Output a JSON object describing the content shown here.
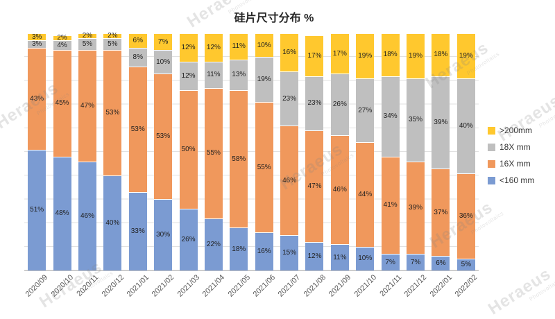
{
  "title": "硅片尺寸分布 %",
  "watermark": {
    "text": "Heraeus",
    "subtext": "Photovoltaics"
  },
  "legend": [
    {
      "label": ">200mm",
      "color": "#FFC82E"
    },
    {
      "label": "18X mm",
      "color": "#BFBFBF"
    },
    {
      "label": "16X mm",
      "color": "#F0985C"
    },
    {
      "label": "<160 mm",
      "color": "#7B9BD2"
    }
  ],
  "chart_data": {
    "type": "bar",
    "stacked": true,
    "title": "硅片尺寸分布 %",
    "xlabel": "",
    "ylabel": "",
    "ylim": [
      0,
      100
    ],
    "grid": true,
    "legend_position": "right",
    "value_suffix": "%",
    "categories": [
      "2020/09",
      "2020/10",
      "2020/11",
      "2020/12",
      "2021/01",
      "2021/02",
      "2021/03",
      "2021/04",
      "2021/05",
      "2021/06",
      "2021/07",
      "2021/08",
      "2021/09",
      "2021/10",
      "2021/11",
      "2021/12",
      "2022/01",
      "2022/02"
    ],
    "series": [
      {
        "name": "<160 mm",
        "color": "#7B9BD2",
        "values": [
          51,
          48,
          46,
          40,
          33,
          30,
          26,
          22,
          18,
          16,
          15,
          12,
          11,
          10,
          7,
          7,
          6,
          5
        ]
      },
      {
        "name": "16X mm",
        "color": "#F0985C",
        "values": [
          43,
          45,
          47,
          53,
          53,
          53,
          50,
          55,
          58,
          55,
          46,
          47,
          46,
          44,
          41,
          39,
          37,
          36
        ]
      },
      {
        "name": "18X mm",
        "color": "#BFBFBF",
        "values": [
          3,
          4,
          5,
          5,
          8,
          10,
          12,
          11,
          13,
          19,
          23,
          23,
          26,
          27,
          34,
          35,
          39,
          40
        ]
      },
      {
        "name": ">200mm",
        "color": "#FFC82E",
        "values": [
          3,
          2,
          2,
          2,
          6,
          7,
          12,
          12,
          11,
          10,
          16,
          17,
          17,
          19,
          18,
          19,
          18,
          19
        ]
      }
    ]
  }
}
